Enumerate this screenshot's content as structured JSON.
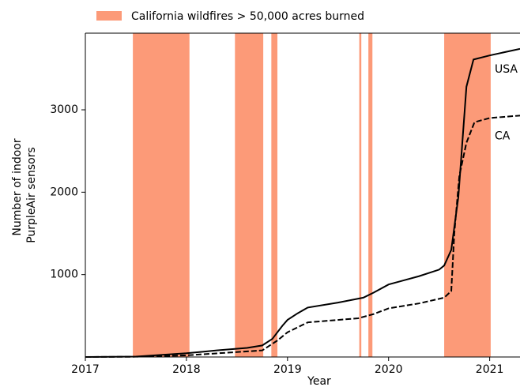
{
  "chart_data": {
    "type": "line",
    "x_label": "Year",
    "y_label": [
      "Number of indoor",
      "PurpleAir sensors"
    ],
    "xlim": [
      2017,
      2021.3
    ],
    "xticks": [
      2017,
      2018,
      2019,
      2020,
      2021
    ],
    "ylim": [
      0,
      3930
    ],
    "yticks": [
      1000,
      2000,
      3000
    ],
    "shaded_regions": {
      "name": "California wildfires > 50,000 acres burned",
      "color": "#fc9a78",
      "ranges": [
        [
          2017.47,
          2018.03
        ],
        [
          2018.48,
          2018.76
        ],
        [
          2018.84,
          2018.9
        ],
        [
          2019.71,
          2019.73
        ],
        [
          2019.8,
          2019.84
        ],
        [
          2020.55,
          2021.01
        ]
      ]
    },
    "series": [
      {
        "name": "USA",
        "color": "#000000",
        "dash": "solid",
        "x": [
          2017,
          2017.5,
          2018,
          2018.3,
          2018.6,
          2018.75,
          2018.85,
          2018.95,
          2019.0,
          2019.1,
          2019.2,
          2019.5,
          2019.75,
          2019.85,
          2020.0,
          2020.3,
          2020.5,
          2020.55,
          2020.62,
          2020.69,
          2020.77,
          2020.84,
          2021.0,
          2021.3
        ],
        "values": [
          0,
          5,
          45,
          80,
          110,
          140,
          220,
          380,
          450,
          530,
          600,
          660,
          720,
          780,
          880,
          980,
          1060,
          1110,
          1300,
          1940,
          3280,
          3610,
          3660,
          3740
        ]
      },
      {
        "name": "CA",
        "color": "#000000",
        "dash": "dashed",
        "x": [
          2017,
          2017.5,
          2018,
          2018.75,
          2018.9,
          2019.0,
          2019.2,
          2019.7,
          2019.85,
          2020.0,
          2020.3,
          2020.55,
          2020.62,
          2020.65,
          2020.7,
          2020.77,
          2020.85,
          2021.0,
          2021.3
        ],
        "values": [
          0,
          3,
          20,
          80,
          200,
          300,
          420,
          470,
          520,
          590,
          650,
          720,
          800,
          1500,
          2200,
          2600,
          2850,
          2900,
          2930
        ]
      }
    ]
  }
}
